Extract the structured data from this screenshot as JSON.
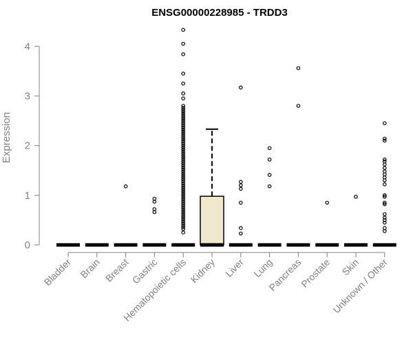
{
  "chart_data": {
    "type": "box",
    "title": "ENSG00000228985 - TRDD3",
    "xlabel": "",
    "ylabel": "Expression",
    "ylim": [
      0,
      4.35
    ],
    "yticks": [
      0,
      1,
      2,
      3,
      4
    ],
    "grid": false,
    "box_fill_color": "#f0e8cc",
    "outlier_color": "#000000",
    "categories": [
      "Bladder",
      "Brain",
      "Breast",
      "Gastric",
      "Hematopoietic cells",
      "Kidney",
      "Liver",
      "Lung",
      "Pancreas",
      "Prostate",
      "Skin",
      "Unknown / Other"
    ],
    "boxes": [
      {
        "category": "Bladder",
        "q1": 0,
        "median": 0,
        "q3": 0,
        "whisker_low": 0,
        "whisker_high": 0,
        "outliers": []
      },
      {
        "category": "Brain",
        "q1": 0,
        "median": 0,
        "q3": 0,
        "whisker_low": 0,
        "whisker_high": 0,
        "outliers": []
      },
      {
        "category": "Breast",
        "q1": 0,
        "median": 0,
        "q3": 0,
        "whisker_low": 0,
        "whisker_high": 0,
        "outliers": [
          1.18
        ]
      },
      {
        "category": "Gastric",
        "q1": 0,
        "median": 0,
        "q3": 0,
        "whisker_low": 0,
        "whisker_high": 0,
        "outliers": [
          0.93,
          0.87,
          0.72,
          0.66
        ]
      },
      {
        "category": "Hematopoietic cells",
        "q1": 0,
        "median": 0,
        "q3": 0,
        "whisker_low": 0,
        "whisker_high": 0,
        "outliers": [
          4.33,
          4.05,
          3.84,
          3.45,
          3.25,
          3.05,
          2.95,
          2.8,
          2.76,
          2.72,
          2.68,
          2.64,
          2.6,
          2.56,
          2.52,
          2.48,
          2.44,
          2.4,
          2.36,
          2.32,
          2.28,
          2.24,
          2.2,
          2.16,
          2.12,
          2.08,
          2.04,
          2.0,
          1.96,
          1.92,
          1.88,
          1.84,
          1.8,
          1.76,
          1.72,
          1.68,
          1.64,
          1.6,
          1.56,
          1.52,
          1.48,
          1.44,
          1.4,
          1.36,
          1.32,
          1.28,
          1.24,
          1.2,
          1.16,
          1.12,
          1.08,
          1.04,
          1.0,
          0.96,
          0.92,
          0.88,
          0.84,
          0.8,
          0.76,
          0.72,
          0.68,
          0.64,
          0.6,
          0.56,
          0.52,
          0.48,
          0.44,
          0.4,
          0.36,
          0.32,
          0.25
        ]
      },
      {
        "category": "Kidney",
        "q1": 0,
        "median": 0,
        "q3": 0.98,
        "whisker_low": 0,
        "whisker_high": 2.33,
        "outliers": []
      },
      {
        "category": "Liver",
        "q1": 0,
        "median": 0,
        "q3": 0,
        "whisker_low": 0,
        "whisker_high": 0,
        "outliers": [
          3.17,
          1.27,
          1.2,
          1.13,
          0.85,
          0.34,
          0.23
        ]
      },
      {
        "category": "Lung",
        "q1": 0,
        "median": 0,
        "q3": 0,
        "whisker_low": 0,
        "whisker_high": 0,
        "outliers": [
          1.95,
          1.72,
          1.41,
          1.18
        ]
      },
      {
        "category": "Pancreas",
        "q1": 0,
        "median": 0,
        "q3": 0,
        "whisker_low": 0,
        "whisker_high": 0,
        "outliers": [
          3.56,
          2.8
        ]
      },
      {
        "category": "Prostate",
        "q1": 0,
        "median": 0,
        "q3": 0,
        "whisker_low": 0,
        "whisker_high": 0,
        "outliers": [
          0.85
        ]
      },
      {
        "category": "Skin",
        "q1": 0,
        "median": 0,
        "q3": 0,
        "whisker_low": 0,
        "whisker_high": 0,
        "outliers": [
          0.97
        ]
      },
      {
        "category": "Unknown / Other",
        "q1": 0,
        "median": 0,
        "q3": 0,
        "whisker_low": 0,
        "whisker_high": 0,
        "outliers": [
          2.45,
          2.14,
          2.1,
          1.72,
          1.68,
          1.62,
          1.55,
          1.48,
          1.42,
          1.36,
          1.3,
          1.22,
          1.0,
          0.97,
          0.85,
          0.82,
          0.62,
          0.55,
          0.5,
          0.45,
          0.34,
          0.28
        ]
      }
    ]
  }
}
